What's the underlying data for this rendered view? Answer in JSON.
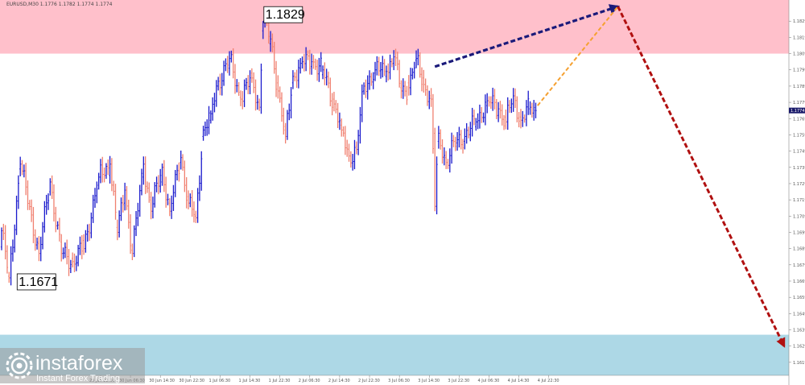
{
  "header": {
    "symbol_info": "EURUSD,M30  1.1776 1.1782 1.1774 1.1774"
  },
  "logo": {
    "brand": "instaforex",
    "tagline": "Instant Forex Trading"
  },
  "colors": {
    "resistance_zone": "#ffc0cb",
    "support_zone": "#add8e6",
    "bull": "#1a1acd",
    "bear": "#f08070",
    "forecast_blue": "#1a1a7a",
    "forecast_orange": "#f5a030",
    "forecast_red": "#b01010",
    "current_price_bg": "#1a1a6a"
  },
  "chart_data": {
    "type": "ohlc",
    "symbol": "EURUSD",
    "timeframe": "M30",
    "y_ticks": [
      1.1829,
      1.1819,
      1.1809,
      1.1799,
      1.1789,
      1.1779,
      1.1769,
      1.1759,
      1.1749,
      1.1739,
      1.1729,
      1.1719,
      1.1709,
      1.1699,
      1.1689,
      1.1679,
      1.1669,
      1.1659,
      1.1649,
      1.1639,
      1.1629,
      1.1619
    ],
    "ylim": [
      1.1611,
      1.1842
    ],
    "x_labels": [
      {
        "idx": 53,
        "label": "29 Jun 22:30"
      },
      {
        "idx": 69,
        "label": "30 Jun 06:30"
      },
      {
        "idx": 85,
        "label": "30 Jun 14:30"
      },
      {
        "idx": 101,
        "label": "30 Jun 22:30"
      },
      {
        "idx": 117,
        "label": "1 Jul 06:30"
      },
      {
        "idx": 133,
        "label": "1 Jul 14:30"
      },
      {
        "idx": 149,
        "label": "1 Jul 22:30"
      },
      {
        "idx": 165,
        "label": "2 Jul 06:30"
      },
      {
        "idx": 181,
        "label": "2 Jul 14:30"
      },
      {
        "idx": 197,
        "label": "2 Jul 22:30"
      },
      {
        "idx": 213,
        "label": "3 Jul 06:30"
      },
      {
        "idx": 229,
        "label": "3 Jul 14:30"
      },
      {
        "idx": 245,
        "label": "3 Jul 22:30"
      },
      {
        "idx": 261,
        "label": "4 Jul 06:30"
      },
      {
        "idx": 277,
        "label": "4 Jul 14:30"
      },
      {
        "idx": 293,
        "label": "4 Jul 22:30"
      }
    ],
    "zones": [
      {
        "name": "resistance",
        "from": 1.1809,
        "to": 1.1842
      },
      {
        "name": "support",
        "from": 1.1611,
        "to": 1.1636
      }
    ],
    "annotations": [
      {
        "label": "1.1829",
        "idx": 140,
        "price": 1.1829
      },
      {
        "label": "1.1671",
        "idx": 4,
        "price": 1.1671
      }
    ],
    "current_price": "1.1774",
    "anchors": [
      [
        0,
        1.169,
        1.17
      ],
      [
        4,
        1.1672,
        1.1671
      ],
      [
        10,
        1.1738,
        1.1741
      ],
      [
        20,
        1.1692,
        1.1686
      ],
      [
        26,
        1.1724,
        1.173
      ],
      [
        32,
        1.1693,
        1.1686
      ],
      [
        38,
        1.1683,
        1.1681
      ],
      [
        44,
        1.1694,
        1.1689
      ],
      [
        52,
        1.1728,
        1.1733
      ],
      [
        58,
        1.1734,
        1.1741
      ],
      [
        62,
        1.1702,
        1.1699
      ],
      [
        66,
        1.1717,
        1.1725
      ],
      [
        70,
        1.1688,
        1.1686
      ],
      [
        76,
        1.1733,
        1.1741
      ],
      [
        80,
        1.1719,
        1.1712
      ],
      [
        86,
        1.173,
        1.1739
      ],
      [
        90,
        1.1717,
        1.1712
      ],
      [
        96,
        1.1742,
        1.1745
      ],
      [
        100,
        1.1721,
        1.1717
      ],
      [
        104,
        1.1709,
        1.1708
      ],
      [
        108,
        1.1758,
        1.1762
      ],
      [
        112,
        1.1768,
        1.1772
      ],
      [
        116,
        1.1789,
        1.1792
      ],
      [
        122,
        1.18,
        1.1806
      ],
      [
        128,
        1.1782,
        1.1781
      ],
      [
        134,
        1.1797,
        1.1794
      ],
      [
        138,
        1.1779,
        1.1776
      ],
      [
        140,
        1.1823,
        1.1829
      ],
      [
        144,
        1.1815,
        1.1818
      ],
      [
        148,
        1.1791,
        1.1786
      ],
      [
        152,
        1.1762,
        1.1758
      ],
      [
        156,
        1.1791,
        1.1795
      ],
      [
        160,
        1.18,
        1.1803
      ],
      [
        166,
        1.1801,
        1.1804
      ],
      [
        172,
        1.1796,
        1.1799
      ],
      [
        178,
        1.1781,
        1.1778
      ],
      [
        182,
        1.1765,
        1.1762
      ],
      [
        186,
        1.175,
        1.1746
      ],
      [
        190,
        1.1752,
        1.175
      ],
      [
        194,
        1.1786,
        1.1789
      ],
      [
        200,
        1.1797,
        1.1799
      ],
      [
        206,
        1.1795,
        1.1798
      ],
      [
        210,
        1.1803,
        1.1807
      ],
      [
        214,
        1.1788,
        1.1786
      ],
      [
        218,
        1.1791,
        1.1788
      ],
      [
        222,
        1.1805,
        1.1806
      ],
      [
        226,
        1.1794,
        1.179
      ],
      [
        230,
        1.1783,
        1.1781
      ],
      [
        232,
        1.176,
        1.1715
      ],
      [
        234,
        1.1755,
        1.176
      ],
      [
        238,
        1.1745,
        1.1742
      ],
      [
        244,
        1.1754,
        1.1756
      ],
      [
        248,
        1.1755,
        1.1758
      ],
      [
        254,
        1.1764,
        1.1767
      ],
      [
        260,
        1.1777,
        1.178
      ],
      [
        266,
        1.1771,
        1.1775
      ],
      [
        270,
        1.177,
        1.1767
      ],
      [
        274,
        1.1778,
        1.1783
      ],
      [
        278,
        1.177,
        1.1768
      ],
      [
        283,
        1.1775,
        1.1776
      ],
      [
        286,
        1.1774,
        1.1774
      ]
    ],
    "candle_count": 287,
    "forecast": [
      {
        "style": "blue",
        "from": [
          232,
          1.1801
        ],
        "to": [
          330,
          1.1838
        ]
      },
      {
        "style": "orange",
        "from": [
          287,
          1.1777
        ],
        "to": [
          330,
          1.1838
        ]
      },
      {
        "style": "red",
        "from": [
          330,
          1.1838
        ],
        "to": [
          419,
          1.1629
        ]
      }
    ]
  }
}
